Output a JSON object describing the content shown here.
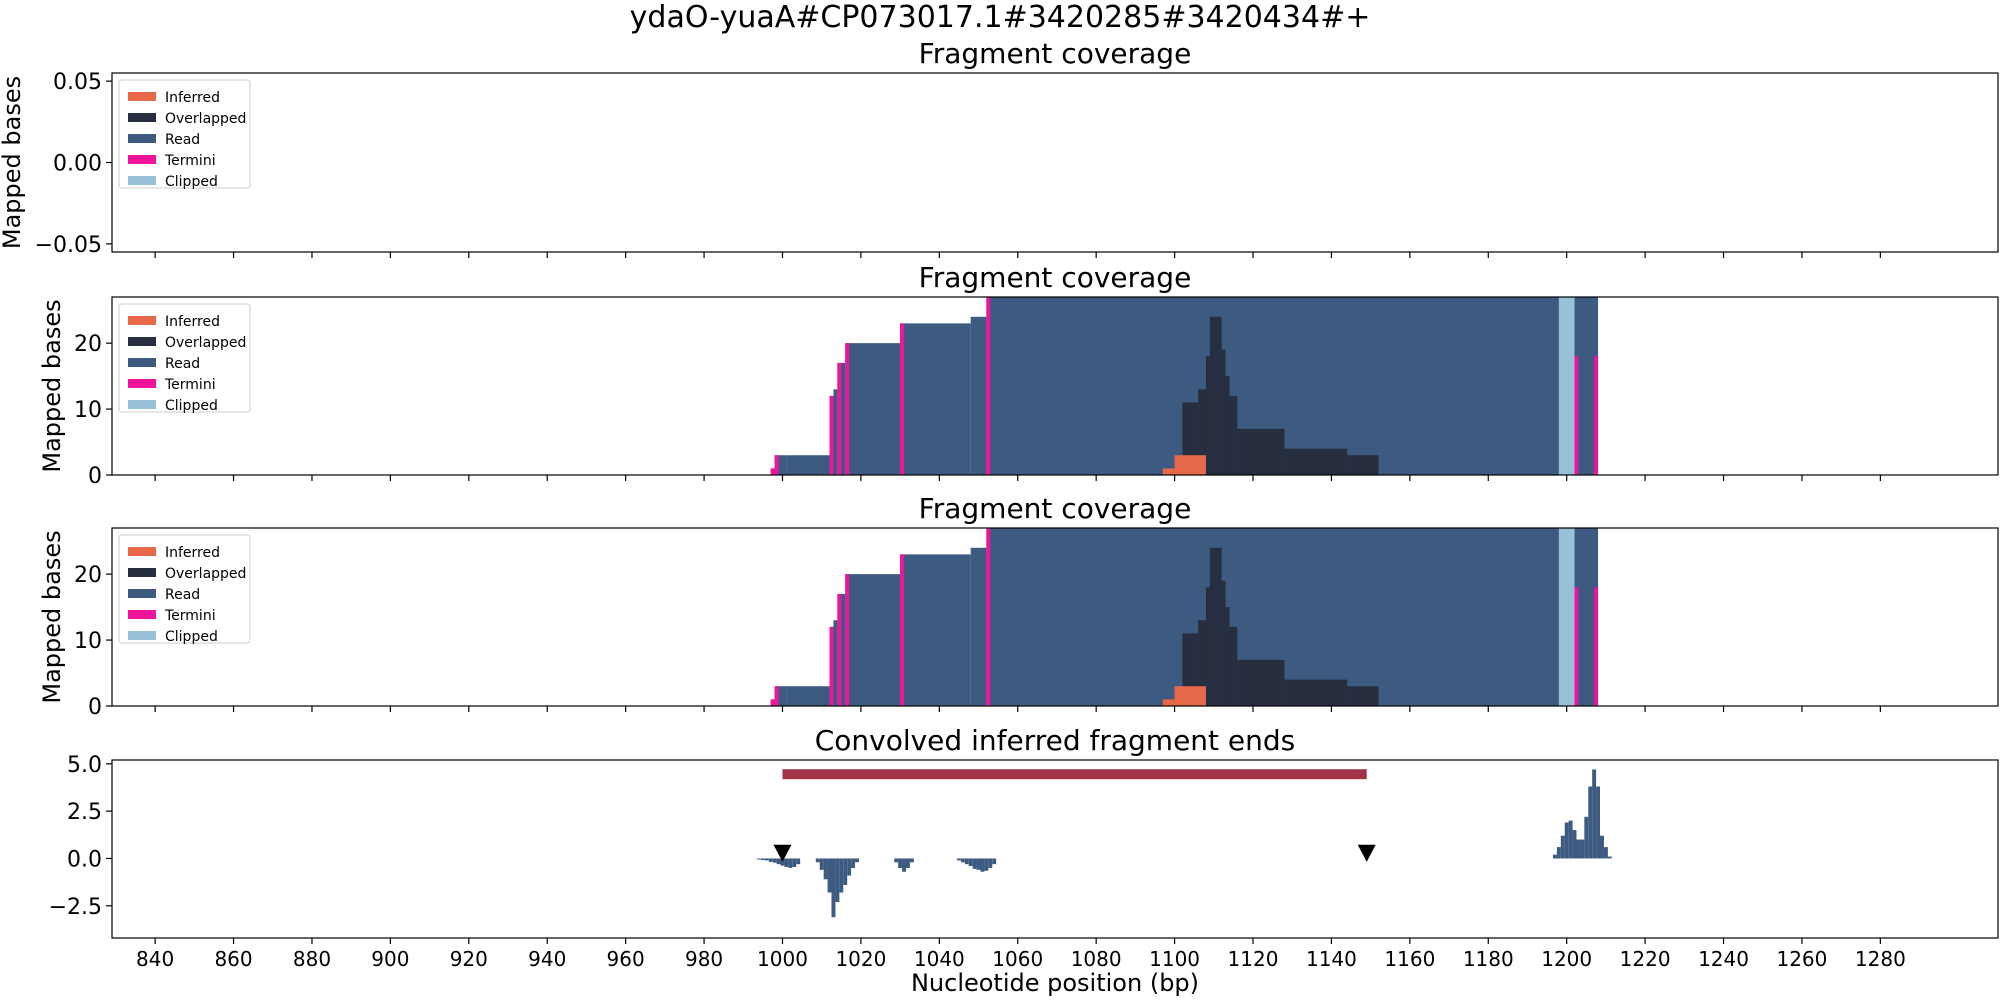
{
  "figure": {
    "title": "ydaO-yuaA#CP073017.1#3420285#3420434#+",
    "xlabel": "Nucleotide position (bp)"
  },
  "colors": {
    "inferred": "#e8694a",
    "overlapped": "#262e40",
    "read": "#3d5a80",
    "termini": "#f0149c",
    "clipped": "#98c1d9",
    "interval": "#a33346",
    "marker": "#000000"
  },
  "chart_data": [
    {
      "type": "area",
      "title": "Fragment coverage",
      "ylabel": "Mapped bases",
      "ylim": [
        -0.055,
        0.055
      ],
      "yticks": [
        -0.05,
        0.0,
        0.05
      ],
      "ytick_labels": [
        "−0.05",
        "0.00",
        "0.05"
      ],
      "xlim": [
        829,
        1310
      ],
      "legend": {
        "placement": "top-left",
        "entries": [
          "Inferred",
          "Overlapped",
          "Read",
          "Termini",
          "Clipped"
        ]
      },
      "series": []
    },
    {
      "type": "area",
      "title": "Fragment coverage",
      "ylabel": "Mapped bases",
      "ylim": [
        0,
        27
      ],
      "yticks": [
        0,
        10,
        20
      ],
      "ytick_labels": [
        "0",
        "10",
        "20"
      ],
      "xlim": [
        829,
        1310
      ],
      "legend": {
        "placement": "top-left",
        "entries": [
          "Inferred",
          "Overlapped",
          "Read",
          "Termini",
          "Clipped"
        ]
      },
      "series": [
        {
          "name": "Read",
          "steps": [
            [
              997,
              1
            ],
            [
              998,
              3
            ],
            [
              1001,
              3
            ],
            [
              1012,
              12
            ],
            [
              1013,
              13
            ],
            [
              1014,
              17
            ],
            [
              1016,
              20
            ],
            [
              1030,
              23
            ],
            [
              1048,
              24
            ],
            [
              1052,
              27
            ],
            [
              1208,
              0
            ]
          ]
        },
        {
          "name": "Termini",
          "steps": [
            [
              997,
              1
            ],
            [
              998,
              3
            ],
            [
              999,
              0
            ],
            [
              1012,
              12
            ],
            [
              1013,
              0
            ],
            [
              1014,
              17
            ],
            [
              1015,
              0
            ],
            [
              1016,
              20
            ],
            [
              1017,
              0
            ],
            [
              1030,
              23
            ],
            [
              1031,
              0
            ],
            [
              1052,
              27
            ],
            [
              1053,
              0
            ],
            [
              1200,
              27
            ],
            [
              1201,
              0
            ],
            [
              1202,
              18
            ],
            [
              1203,
              0
            ],
            [
              1207,
              18
            ],
            [
              1208,
              0
            ]
          ]
        },
        {
          "name": "Clipped",
          "steps": [
            [
              1198,
              27
            ],
            [
              1202,
              0
            ]
          ]
        },
        {
          "name": "Overlapped",
          "steps": [
            [
              1100,
              1
            ],
            [
              1102,
              11
            ],
            [
              1106,
              13
            ],
            [
              1108,
              18
            ],
            [
              1109,
              24
            ],
            [
              1112,
              19
            ],
            [
              1113,
              15
            ],
            [
              1114,
              12
            ],
            [
              1116,
              7
            ],
            [
              1128,
              4
            ],
            [
              1144,
              3
            ],
            [
              1152,
              0
            ]
          ]
        },
        {
          "name": "Inferred",
          "steps": [
            [
              1097,
              1
            ],
            [
              1100,
              3
            ],
            [
              1108,
              0
            ]
          ]
        }
      ]
    },
    {
      "type": "area",
      "title": "Fragment coverage",
      "ylabel": "Mapped bases",
      "ylim": [
        0,
        27
      ],
      "yticks": [
        0,
        10,
        20
      ],
      "ytick_labels": [
        "0",
        "10",
        "20"
      ],
      "xlim": [
        829,
        1310
      ],
      "legend": {
        "placement": "top-left",
        "entries": [
          "Inferred",
          "Overlapped",
          "Read",
          "Termini",
          "Clipped"
        ]
      },
      "series": [
        {
          "name": "Read",
          "steps": [
            [
              997,
              1
            ],
            [
              998,
              3
            ],
            [
              1001,
              3
            ],
            [
              1012,
              12
            ],
            [
              1013,
              13
            ],
            [
              1014,
              17
            ],
            [
              1016,
              20
            ],
            [
              1030,
              23
            ],
            [
              1048,
              24
            ],
            [
              1052,
              27
            ],
            [
              1208,
              0
            ]
          ]
        },
        {
          "name": "Termini",
          "steps": [
            [
              997,
              1
            ],
            [
              998,
              3
            ],
            [
              999,
              0
            ],
            [
              1012,
              12
            ],
            [
              1013,
              0
            ],
            [
              1014,
              17
            ],
            [
              1015,
              0
            ],
            [
              1016,
              20
            ],
            [
              1017,
              0
            ],
            [
              1030,
              23
            ],
            [
              1031,
              0
            ],
            [
              1052,
              27
            ],
            [
              1053,
              0
            ],
            [
              1200,
              27
            ],
            [
              1201,
              0
            ],
            [
              1202,
              18
            ],
            [
              1203,
              0
            ],
            [
              1207,
              18
            ],
            [
              1208,
              0
            ]
          ]
        },
        {
          "name": "Clipped",
          "steps": [
            [
              1198,
              27
            ],
            [
              1202,
              0
            ]
          ]
        },
        {
          "name": "Overlapped",
          "steps": [
            [
              1100,
              1
            ],
            [
              1102,
              11
            ],
            [
              1106,
              13
            ],
            [
              1108,
              18
            ],
            [
              1109,
              24
            ],
            [
              1112,
              19
            ],
            [
              1113,
              15
            ],
            [
              1114,
              12
            ],
            [
              1116,
              7
            ],
            [
              1128,
              4
            ],
            [
              1144,
              3
            ],
            [
              1152,
              0
            ]
          ]
        },
        {
          "name": "Inferred",
          "steps": [
            [
              1097,
              1
            ],
            [
              1100,
              3
            ],
            [
              1108,
              0
            ]
          ]
        }
      ]
    },
    {
      "type": "bar",
      "title": "Convolved inferred fragment ends",
      "xlabel": "Nucleotide position (bp)",
      "ylim": [
        -4.2,
        5.2
      ],
      "yticks": [
        -2.5,
        0.0,
        2.5,
        5.0
      ],
      "ytick_labels": [
        "−2.5",
        "0.0",
        "2.5",
        "5.0"
      ],
      "xlim": [
        829,
        1310
      ],
      "xticks": [
        840,
        860,
        880,
        900,
        920,
        940,
        960,
        980,
        1000,
        1020,
        1040,
        1060,
        1080,
        1100,
        1120,
        1140,
        1160,
        1180,
        1200,
        1220,
        1240,
        1260,
        1280
      ],
      "interval": {
        "start": 1000,
        "end": 1149,
        "y": 4.45
      },
      "markers": [
        {
          "x": 1000,
          "y": 0.3
        },
        {
          "x": 1149,
          "y": 0.3
        }
      ],
      "bars": [
        [
          994,
          -0.05
        ],
        [
          995,
          -0.08
        ],
        [
          996,
          -0.1
        ],
        [
          997,
          -0.18
        ],
        [
          998,
          -0.22
        ],
        [
          999,
          -0.3
        ],
        [
          1000,
          -0.38
        ],
        [
          1001,
          -0.45
        ],
        [
          1002,
          -0.5
        ],
        [
          1003,
          -0.45
        ],
        [
          1004,
          -0.3
        ],
        [
          1009,
          -0.2
        ],
        [
          1010,
          -0.6
        ],
        [
          1011,
          -1.1
        ],
        [
          1012,
          -1.8
        ],
        [
          1013,
          -3.1
        ],
        [
          1014,
          -2.3
        ],
        [
          1015,
          -1.8
        ],
        [
          1016,
          -1.4
        ],
        [
          1017,
          -0.9
        ],
        [
          1018,
          -0.5
        ],
        [
          1019,
          -0.2
        ],
        [
          1029,
          -0.2
        ],
        [
          1030,
          -0.5
        ],
        [
          1031,
          -0.7
        ],
        [
          1032,
          -0.5
        ],
        [
          1033,
          -0.2
        ],
        [
          1045,
          -0.1
        ],
        [
          1046,
          -0.2
        ],
        [
          1047,
          -0.3
        ],
        [
          1048,
          -0.4
        ],
        [
          1049,
          -0.55
        ],
        [
          1050,
          -0.6
        ],
        [
          1051,
          -0.7
        ],
        [
          1052,
          -0.65
        ],
        [
          1053,
          -0.5
        ],
        [
          1054,
          -0.3
        ],
        [
          1197,
          0.2
        ],
        [
          1198,
          0.6
        ],
        [
          1199,
          1.2
        ],
        [
          1200,
          1.9
        ],
        [
          1201,
          2.0
        ],
        [
          1202,
          1.5
        ],
        [
          1203,
          1.0
        ],
        [
          1204,
          1.0
        ],
        [
          1205,
          2.2
        ],
        [
          1206,
          3.8
        ],
        [
          1207,
          4.7
        ],
        [
          1208,
          3.8
        ],
        [
          1209,
          1.2
        ],
        [
          1210,
          0.6
        ],
        [
          1211,
          0.1
        ]
      ]
    }
  ]
}
